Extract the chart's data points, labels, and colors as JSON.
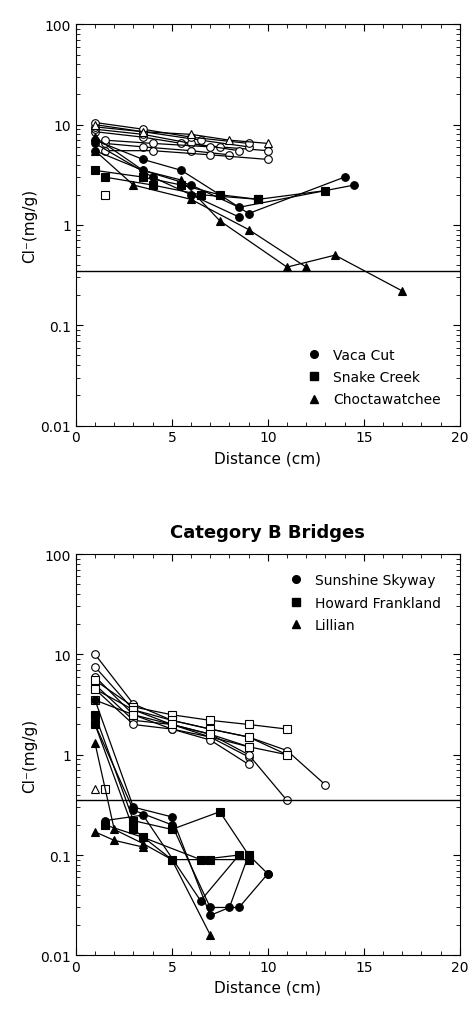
{
  "title_bottom": "Category B Bridges",
  "xlabel": "Distance (cm)",
  "xlim": [
    0,
    20
  ],
  "ylim": [
    0.01,
    100
  ],
  "threshold": 0.35,
  "top_plot": {
    "legend": [
      "Vaca Cut",
      "Snake Creek",
      "Choctawatchee"
    ],
    "open_circle_series": [
      [
        1.0,
        8.5,
        3.5,
        7.5,
        5.5,
        6.5,
        7.5,
        6.0,
        10.0,
        5.5
      ],
      [
        1.0,
        9.0,
        3.5,
        8.0,
        6.0,
        6.5,
        8.5,
        5.5
      ],
      [
        1.0,
        9.5,
        3.5,
        8.5,
        6.5,
        7.0,
        9.0,
        6.0
      ],
      [
        1.5,
        6.5,
        3.5,
        6.0,
        6.0,
        5.5,
        8.0,
        5.0
      ],
      [
        1.5,
        5.5,
        4.0,
        5.5,
        7.0,
        5.0,
        10.0,
        4.5
      ],
      [
        1.5,
        7.0,
        4.0,
        6.5,
        7.0,
        6.0
      ],
      [
        1.0,
        10.5,
        3.5,
        9.0,
        6.0,
        7.5,
        9.0,
        6.5
      ]
    ],
    "open_square_series": [
      [
        1.5,
        2.0
      ]
    ],
    "open_triangle_series": [
      [
        1.0,
        10.0,
        3.5,
        8.5,
        6.0,
        8.0,
        8.0,
        7.0,
        10.0,
        6.5
      ]
    ],
    "filled_circle_series": [
      [
        1.0,
        7.0,
        3.5,
        4.5,
        5.5,
        3.5,
        7.5,
        2.0,
        9.0,
        1.3,
        14.0,
        3.0
      ],
      [
        1.0,
        5.5,
        3.5,
        3.5,
        6.0,
        2.5,
        8.5,
        1.5,
        14.5,
        2.5
      ],
      [
        1.0,
        6.5,
        4.0,
        3.0,
        6.0,
        2.0,
        8.5,
        1.2
      ]
    ],
    "filled_square_series": [
      [
        1.0,
        3.5,
        3.5,
        3.0,
        5.5,
        2.5,
        7.5,
        2.0,
        9.5,
        1.8,
        13.0,
        2.2
      ],
      [
        1.5,
        3.0,
        4.0,
        2.5,
        6.5,
        2.0,
        9.5,
        1.8
      ]
    ],
    "filled_triangle_series": [
      [
        1.0,
        7.5,
        3.5,
        3.5,
        5.5,
        2.8,
        7.5,
        1.1,
        11.0,
        0.38,
        13.5,
        0.5,
        17.0,
        0.22
      ],
      [
        1.0,
        5.5,
        3.0,
        2.5,
        6.0,
        1.8,
        9.0,
        0.9,
        12.0,
        0.38
      ]
    ]
  },
  "bottom_plot": {
    "legend": [
      "Sunshine Skyway",
      "Howard Frankland",
      "Lillian"
    ],
    "open_circle_series": [
      [
        1.0,
        10.0,
        3.0,
        3.2,
        5.0,
        2.2,
        7.0,
        1.8,
        9.0,
        1.5,
        11.0,
        1.1,
        13.0,
        0.5
      ],
      [
        1.0,
        7.5,
        3.0,
        2.8,
        5.0,
        2.0,
        7.0,
        1.5,
        9.0,
        1.2,
        11.0,
        1.0
      ],
      [
        1.0,
        6.0,
        3.0,
        2.5,
        5.0,
        1.8,
        7.0,
        1.5,
        9.0,
        0.95
      ],
      [
        1.0,
        5.0,
        3.0,
        2.2,
        5.0,
        2.0,
        7.0,
        1.6,
        9.0,
        1.0,
        11.0,
        0.35
      ],
      [
        1.0,
        4.5,
        3.0,
        2.0,
        5.0,
        1.8,
        7.0,
        1.4,
        9.0,
        0.8
      ]
    ],
    "open_square_series": [
      [
        1.0,
        5.5,
        3.0,
        3.0,
        5.0,
        2.5,
        7.0,
        2.2,
        9.0,
        2.0,
        11.0,
        1.8
      ],
      [
        1.0,
        4.5,
        3.0,
        2.8,
        5.0,
        2.2,
        7.0,
        1.8,
        9.0,
        1.5,
        11.0,
        1.0
      ],
      [
        1.0,
        3.5,
        3.0,
        2.5,
        5.0,
        2.0,
        7.0,
        1.6,
        9.0,
        1.2
      ],
      [
        1.5,
        0.45
      ]
    ],
    "open_triangle_series": [
      [
        1.0,
        0.45
      ]
    ],
    "filled_circle_series": [
      [
        1.0,
        3.5,
        3.0,
        0.3,
        5.0,
        0.24,
        7.0,
        0.025,
        8.0,
        0.03,
        9.0,
        0.1,
        10.0,
        0.065
      ],
      [
        1.0,
        2.0,
        3.0,
        0.28,
        5.0,
        0.2,
        7.0,
        0.03,
        8.5,
        0.03,
        10.0,
        0.065
      ],
      [
        1.5,
        0.22,
        3.5,
        0.25,
        6.5,
        0.035,
        8.5,
        0.1
      ]
    ],
    "filled_square_series": [
      [
        1.0,
        2.5,
        3.0,
        0.22,
        5.0,
        0.18,
        7.5,
        0.27,
        9.0,
        0.1
      ],
      [
        1.0,
        2.0,
        3.0,
        0.18,
        5.0,
        0.09,
        7.0,
        0.09,
        9.0,
        0.09
      ],
      [
        1.5,
        0.2,
        3.5,
        0.15,
        6.5,
        0.09,
        8.5,
        0.1
      ]
    ],
    "filled_triangle_series": [
      [
        1.0,
        1.3,
        2.0,
        0.18,
        3.5,
        0.13,
        5.0,
        0.09,
        7.0,
        0.016
      ],
      [
        1.0,
        0.17,
        2.0,
        0.14,
        3.5,
        0.12
      ]
    ]
  }
}
